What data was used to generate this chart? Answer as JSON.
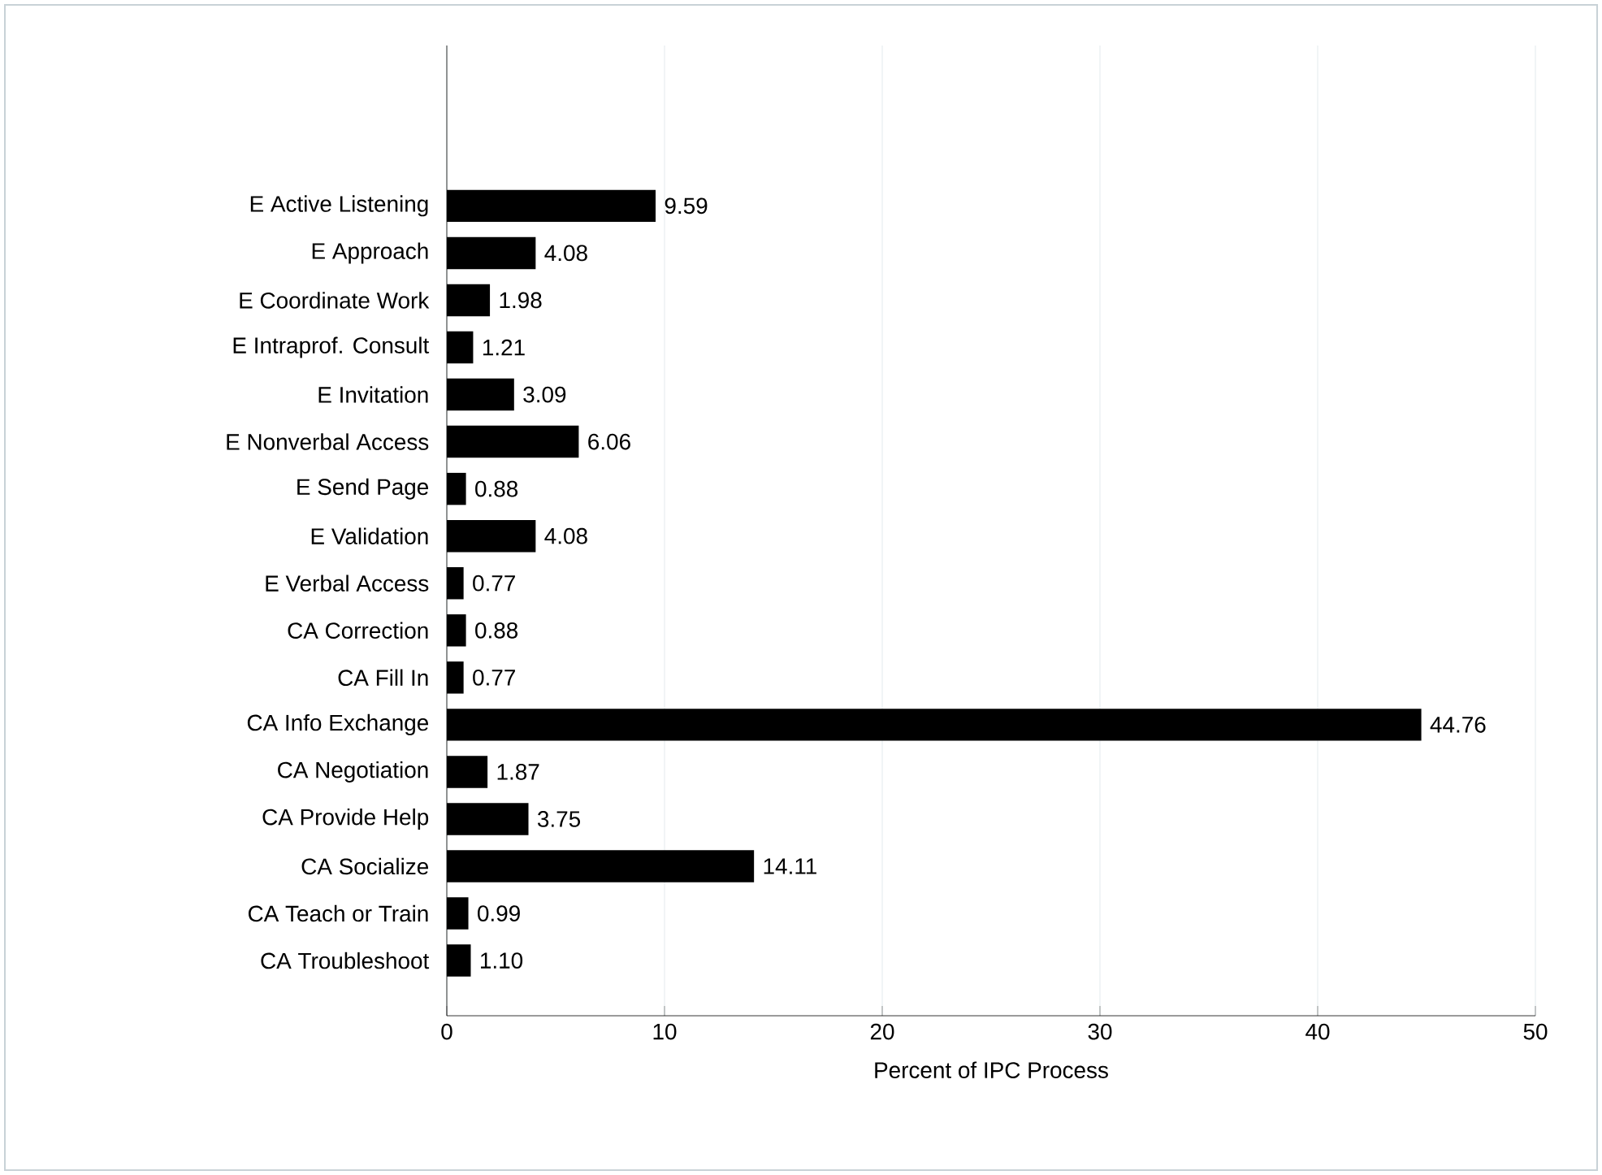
{
  "chart_data": {
    "type": "bar",
    "orientation": "horizontal",
    "xlabel": "Percent of IPC Process",
    "categories": [
      "E Active Listening",
      "E Approach",
      "E Coordinate Work",
      "E Intraprof. Consult",
      "E Invitation",
      "E Nonverbal Access",
      "E Send Page",
      "E Validation",
      "E Verbal Access",
      "CA Correction",
      "CA Fill In",
      "CA Info Exchange",
      "CA Negotiation",
      "CA Provide Help",
      "CA Socialize",
      "CA Teach or Train",
      "CA Troubleshoot"
    ],
    "values": [
      9.59,
      4.08,
      1.98,
      1.21,
      3.09,
      6.06,
      0.88,
      4.08,
      0.77,
      0.88,
      0.77,
      44.76,
      1.87,
      3.75,
      14.11,
      0.99,
      1.1
    ],
    "value_labels": [
      "9.59",
      "4.08",
      "1.98",
      "1.21",
      "3.09",
      "6.06",
      "0.88",
      "4.08",
      "0.77",
      "0.88",
      "0.77",
      "44.76",
      "1.87",
      "3.75",
      "14.11",
      "0.99",
      "1.10"
    ],
    "color": "#000000",
    "xlim": [
      0,
      50
    ],
    "xticks": [
      0,
      10,
      20,
      30,
      40,
      50
    ],
    "grid": "x"
  }
}
